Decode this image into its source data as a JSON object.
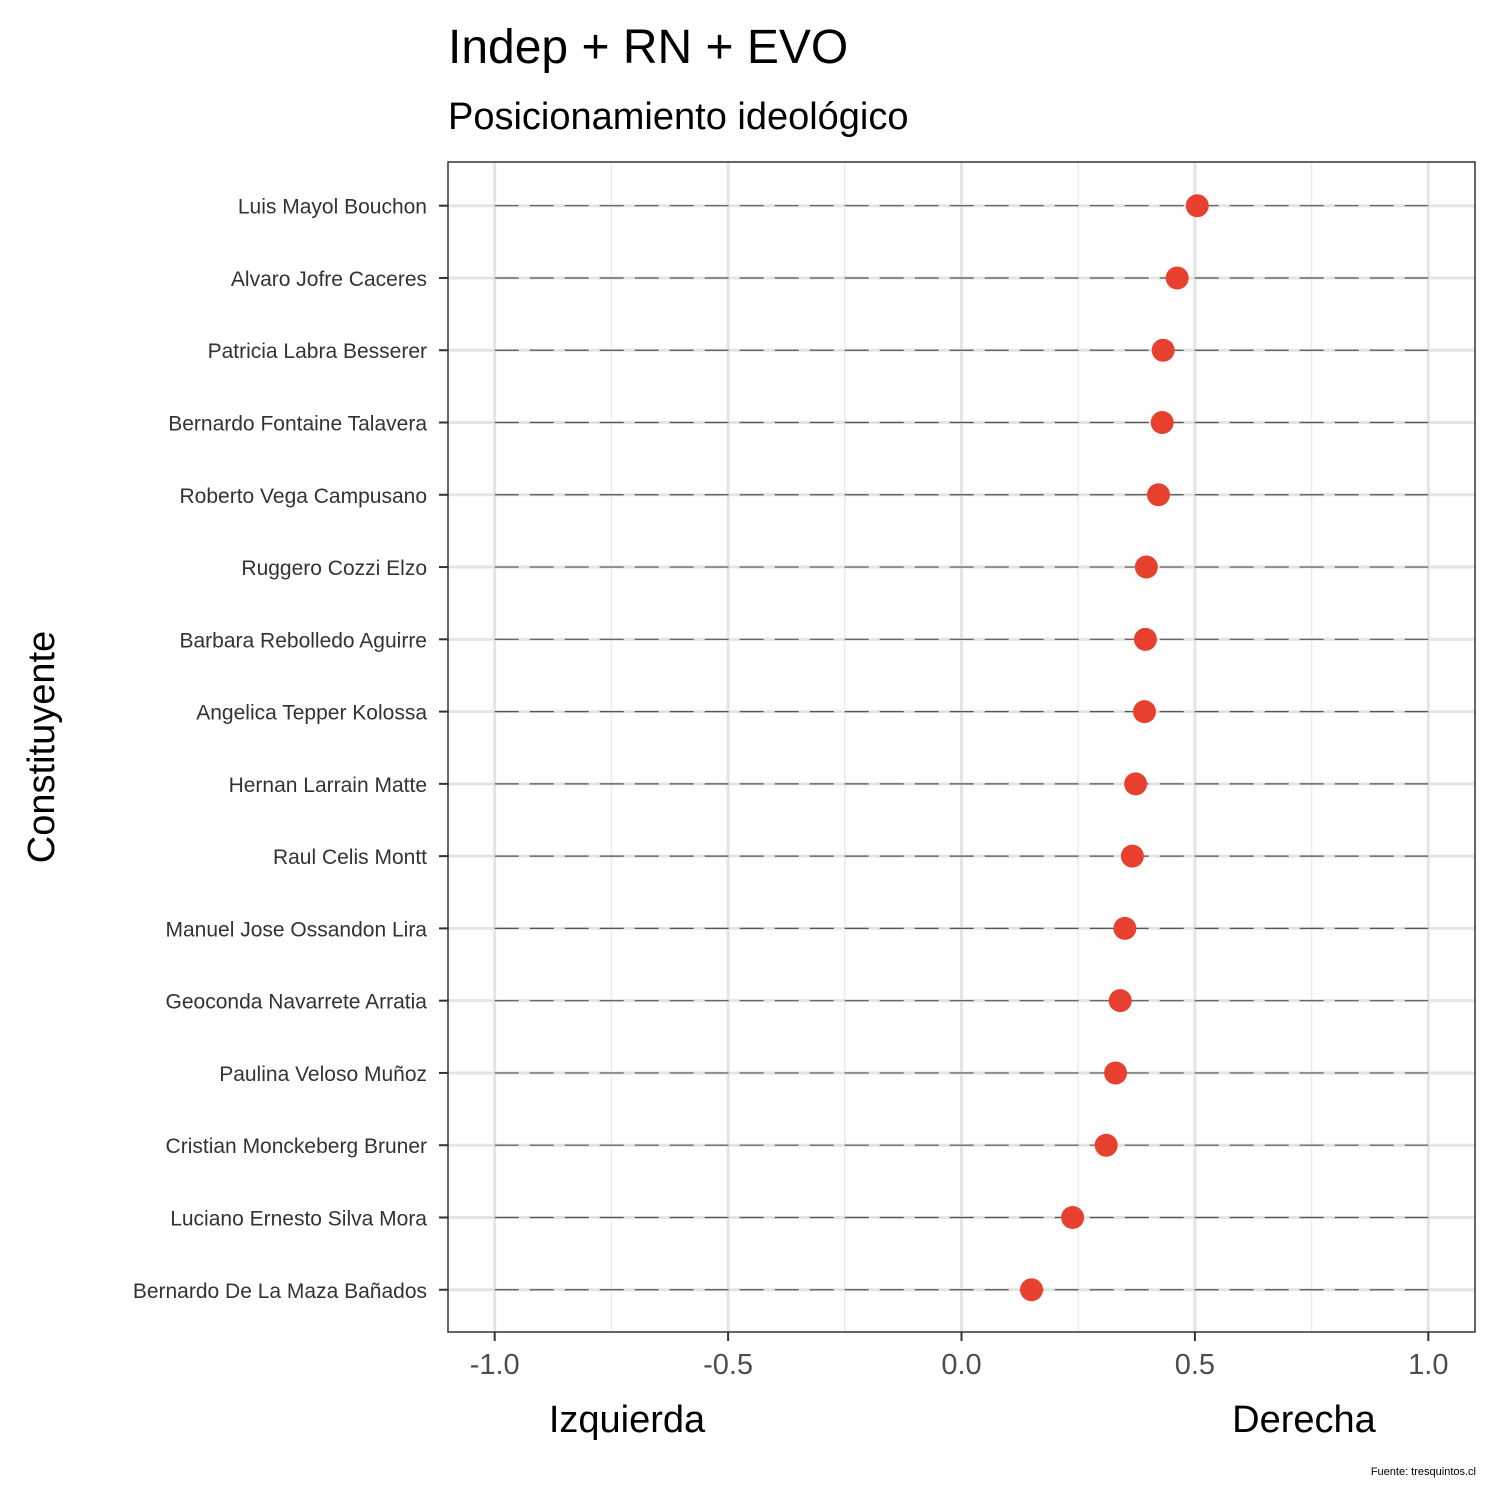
{
  "chart_data": {
    "type": "scatter",
    "title": "Indep + RN + EVO",
    "subtitle": "Posicionamiento ideológico",
    "ylabel": "Constituyente",
    "x_annotation_left": "Izquierda",
    "x_annotation_right": "Derecha",
    "caption": "Fuente: tresquintos.cl",
    "xlim": [
      -1.1,
      1.1
    ],
    "x_ticks": [
      -1.0,
      -0.5,
      0.0,
      0.5,
      1.0
    ],
    "x_tick_labels": [
      "-1.0",
      "-0.5",
      "0.0",
      "0.5",
      "1.0"
    ],
    "grid": true,
    "dashed_range": [
      -1.0,
      1.0
    ],
    "point_color": "#e8402f",
    "categories": [
      "Luis Mayol Bouchon",
      "Alvaro Jofre Caceres",
      "Patricia Labra Besserer",
      "Bernardo Fontaine Talavera",
      "Roberto Vega Campusano",
      "Ruggero Cozzi Elzo",
      "Barbara Rebolledo Aguirre",
      "Angelica Tepper Kolossa",
      "Hernan Larrain Matte",
      "Raul Celis Montt",
      "Manuel Jose Ossandon Lira",
      "Geoconda Navarrete Arratia",
      "Paulina Veloso Muñoz",
      "Cristian Monckeberg Bruner",
      "Luciano Ernesto Silva Mora",
      "Bernardo De La Maza Bañados"
    ],
    "values": [
      0.505,
      0.462,
      0.432,
      0.43,
      0.422,
      0.396,
      0.394,
      0.392,
      0.373,
      0.366,
      0.35,
      0.34,
      0.33,
      0.31,
      0.238,
      0.15
    ]
  }
}
